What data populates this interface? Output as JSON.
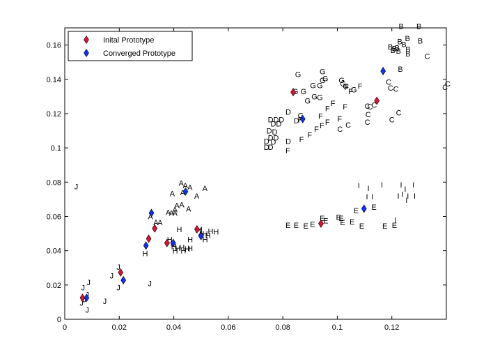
{
  "chart_data": {
    "type": "scatter",
    "xlim": [
      0,
      0.14
    ],
    "ylim": [
      0,
      0.17
    ],
    "xticks": [
      "0",
      "0.02",
      "0.04",
      "0.06",
      "0.08",
      "0.1",
      "0.12"
    ],
    "yticks": [
      "0",
      "0.02",
      "0.04",
      "0.06",
      "0.08",
      "0.1",
      "0.12",
      "0.14",
      "0.16"
    ],
    "xtick_values": [
      0,
      0.02,
      0.04,
      0.06,
      0.08,
      0.1,
      0.12
    ],
    "ytick_values": [
      0,
      0.02,
      0.04,
      0.06,
      0.08,
      0.1,
      0.12,
      0.14,
      0.16
    ],
    "legend": {
      "placement": "top-left",
      "entries": [
        "Inital Prototype",
        "Converged Prototype"
      ]
    },
    "colors": {
      "initial": "#dd1133",
      "converged": "#1133ee"
    },
    "series": [
      {
        "name": "Inital Prototype",
        "points": [
          [
            0.0065,
            0.0125
          ],
          [
            0.0205,
            0.0273
          ],
          [
            0.0308,
            0.047
          ],
          [
            0.033,
            0.053
          ],
          [
            0.0375,
            0.0445
          ],
          [
            0.0485,
            0.0525
          ],
          [
            0.05,
            0.049
          ],
          [
            0.0838,
            0.1325
          ],
          [
            0.094,
            0.0558
          ],
          [
            0.1145,
            0.1275
          ]
        ]
      },
      {
        "name": "Converged Prototype",
        "points": [
          [
            0.008,
            0.0125
          ],
          [
            0.0215,
            0.0228
          ],
          [
            0.0298,
            0.043
          ],
          [
            0.0318,
            0.062
          ],
          [
            0.0398,
            0.0445
          ],
          [
            0.0443,
            0.0745
          ],
          [
            0.05,
            0.0485
          ],
          [
            0.0873,
            0.1168
          ],
          [
            0.1098,
            0.0645
          ],
          [
            0.1168,
            0.1448
          ]
        ]
      }
    ],
    "letter_points": [
      [
        "A",
        0.0418,
        0.0795
      ],
      [
        "A",
        0.0433,
        0.078
      ],
      [
        "A",
        0.045,
        0.077
      ],
      [
        "A",
        0.0423,
        0.074
      ],
      [
        "A",
        0.0505,
        0.0765
      ],
      [
        "A",
        0.0385,
        0.0735
      ],
      [
        "A",
        0.0475,
        0.072
      ],
      [
        "A",
        0.0402,
        0.0665
      ],
      [
        "A",
        0.042,
        0.067
      ],
      [
        "A",
        0.0445,
        0.0645
      ],
      [
        "A",
        0.0395,
        0.064
      ],
      [
        "A",
        0.0382,
        0.062
      ],
      [
        "A",
        0.0395,
        0.062
      ],
      [
        "A",
        0.037,
        0.0625
      ],
      [
        "A",
        0.0325,
        0.0565
      ],
      [
        "A",
        0.034,
        0.0565
      ],
      [
        "A",
        0.0305,
        0.06
      ],
      [
        "B",
        0.1225,
        0.171
      ],
      [
        "B",
        0.129,
        0.171
      ],
      [
        "B",
        0.1248,
        0.164
      ],
      [
        "B",
        0.1295,
        0.1625
      ],
      [
        "B",
        0.122,
        0.162
      ],
      [
        "B",
        0.1235,
        0.1605
      ],
      [
        "B",
        0.1185,
        0.159
      ],
      [
        "B",
        0.121,
        0.1585
      ],
      [
        "B",
        0.12,
        0.158
      ],
      [
        "B",
        0.125,
        0.1575
      ],
      [
        "B",
        0.1195,
        0.157
      ],
      [
        "B",
        0.1215,
        0.1565
      ],
      [
        "B",
        0.125,
        0.155
      ],
      [
        "B",
        0.1222,
        0.146
      ],
      [
        "C",
        0.132,
        0.1535
      ],
      [
        "C",
        0.1178,
        0.1385
      ],
      [
        "C",
        0.1385,
        0.1355
      ],
      [
        "C",
        0.1395,
        0.1375
      ],
      [
        "C",
        0.1185,
        0.135
      ],
      [
        "C",
        0.1205,
        0.1345
      ],
      [
        "C",
        0.1125,
        0.125
      ],
      [
        "C",
        0.11,
        0.1245
      ],
      [
        "C",
        0.111,
        0.124
      ],
      [
        "C",
        0.1215,
        0.1205
      ],
      [
        "C",
        0.1103,
        0.1195
      ],
      [
        "C",
        0.119,
        0.1165
      ],
      [
        "C",
        0.11,
        0.115
      ],
      [
        "C",
        0.103,
        0.1135
      ],
      [
        "C",
        0.1,
        0.111
      ],
      [
        "D",
        0.081,
        0.121
      ],
      [
        "D",
        0.0745,
        0.1165
      ],
      [
        "D",
        0.0765,
        0.1165
      ],
      [
        "D",
        0.0785,
        0.1165
      ],
      [
        "D",
        0.0755,
        0.114
      ],
      [
        "D",
        0.0775,
        0.114
      ],
      [
        "D",
        0.074,
        0.11
      ],
      [
        "D",
        0.076,
        0.1095
      ],
      [
        "D",
        0.0745,
        0.106
      ],
      [
        "D",
        0.0765,
        0.106
      ],
      [
        "D",
        0.073,
        0.104
      ],
      [
        "D",
        0.0755,
        0.1035
      ],
      [
        "D",
        0.073,
        0.1005
      ],
      [
        "D",
        0.0745,
        0.1005
      ],
      [
        "D",
        0.081,
        0.104
      ],
      [
        "D",
        0.084,
        0.116
      ],
      [
        "E",
        0.081,
        0.055
      ],
      [
        "E",
        0.084,
        0.055
      ],
      [
        "E",
        0.0875,
        0.0545
      ],
      [
        "E",
        0.09,
        0.0555
      ],
      [
        "E",
        0.0935,
        0.059
      ],
      [
        "E",
        0.0948,
        0.0575
      ],
      [
        "E",
        0.0995,
        0.0595
      ],
      [
        "E",
        0.1005,
        0.059
      ],
      [
        "E",
        0.101,
        0.0565
      ],
      [
        "E",
        0.1045,
        0.057
      ],
      [
        "E",
        0.108,
        0.0545
      ],
      [
        "E",
        0.106,
        0.0635
      ],
      [
        "E",
        0.1125,
        0.0655
      ],
      [
        "E",
        0.1165,
        0.0545
      ],
      [
        "E",
        0.12,
        0.055
      ],
      [
        "F",
        0.1025,
        0.1355
      ],
      [
        "F",
        0.1075,
        0.136
      ],
      [
        "F",
        0.104,
        0.133
      ],
      [
        "F",
        0.0975,
        0.126
      ],
      [
        "F",
        0.0955,
        0.123
      ],
      [
        "F",
        0.093,
        0.1185
      ],
      [
        "F",
        0.102,
        0.124
      ],
      [
        "F",
        0.1,
        0.117
      ],
      [
        "F",
        0.0955,
        0.115
      ],
      [
        "F",
        0.0935,
        0.113
      ],
      [
        "F",
        0.0915,
        0.111
      ],
      [
        "F",
        0.089,
        0.1075
      ],
      [
        "F",
        0.086,
        0.105
      ],
      [
        "F",
        0.081,
        0.0985
      ],
      [
        "F",
        0.0855,
        0.1165
      ],
      [
        "G",
        0.0845,
        0.143
      ],
      [
        "G",
        0.0935,
        0.1445
      ],
      [
        "G",
        0.0945,
        0.1405
      ],
      [
        "G",
        0.0935,
        0.1395
      ],
      [
        "G",
        0.1005,
        0.1395
      ],
      [
        "G",
        0.101,
        0.1375
      ],
      [
        "G",
        0.102,
        0.136
      ],
      [
        "G",
        0.09,
        0.1365
      ],
      [
        "G",
        0.0925,
        0.1365
      ],
      [
        "G",
        0.0865,
        0.133
      ],
      [
        "G",
        0.0835,
        0.133
      ],
      [
        "G",
        0.088,
        0.1275
      ],
      [
        "G",
        0.0905,
        0.13
      ],
      [
        "G",
        0.0925,
        0.1295
      ],
      [
        "G",
        0.0855,
        0.119
      ],
      [
        "G",
        0.105,
        0.134
      ],
      [
        "H",
        0.041,
        0.0525
      ],
      [
        "H",
        0.048,
        0.052
      ],
      [
        "H",
        0.0485,
        0.0525
      ],
      [
        "H",
        0.0525,
        0.0515
      ],
      [
        "H",
        0.0545,
        0.051
      ],
      [
        "H",
        0.0505,
        0.05
      ],
      [
        "H",
        0.0515,
        0.049
      ],
      [
        "H",
        0.0375,
        0.0465
      ],
      [
        "H",
        0.045,
        0.0465
      ],
      [
        "H",
        0.0505,
        0.0465
      ],
      [
        "H",
        0.0375,
        0.0445
      ],
      [
        "H",
        0.039,
        0.0425
      ],
      [
        "H",
        0.0405,
        0.0415
      ],
      [
        "H",
        0.042,
        0.042
      ],
      [
        "H",
        0.044,
        0.041
      ],
      [
        "H",
        0.0395,
        0.04
      ],
      [
        "H",
        0.0425,
        0.04
      ],
      [
        "H",
        0.045,
        0.0415
      ],
      [
        "H",
        0.0285,
        0.0385
      ],
      [
        "I",
        0.1075,
        0.078
      ],
      [
        "I",
        0.111,
        0.0765
      ],
      [
        "I",
        0.116,
        0.0785
      ],
      [
        "I",
        0.123,
        0.0785
      ],
      [
        "I",
        0.1275,
        0.0785
      ],
      [
        "I",
        0.1245,
        0.076
      ],
      [
        "I",
        0.1235,
        0.073
      ],
      [
        "I",
        0.122,
        0.072
      ],
      [
        "I",
        0.1255,
        0.072
      ],
      [
        "I",
        0.128,
        0.072
      ],
      [
        "I",
        0.125,
        0.0695
      ],
      [
        "I",
        0.1105,
        0.0715
      ],
      [
        "I",
        0.1125,
        0.0715
      ],
      [
        "I",
        0.121,
        0.058
      ],
      [
        "J",
        0.0035,
        0.0775
      ],
      [
        "J",
        0.0165,
        0.0255
      ],
      [
        "J",
        0.019,
        0.0305
      ],
      [
        "J",
        0.019,
        0.0185
      ],
      [
        "J",
        0.0305,
        0.021
      ],
      [
        "J",
        0.008,
        0.0215
      ],
      [
        "J",
        0.006,
        0.0185
      ],
      [
        "J",
        0.0075,
        0.0145
      ],
      [
        "J",
        0.0065,
        0.0115
      ],
      [
        "J",
        0.0055,
        0.0095
      ],
      [
        "J",
        0.014,
        0.0105
      ],
      [
        "J",
        0.0075,
        0.0055
      ]
    ]
  }
}
